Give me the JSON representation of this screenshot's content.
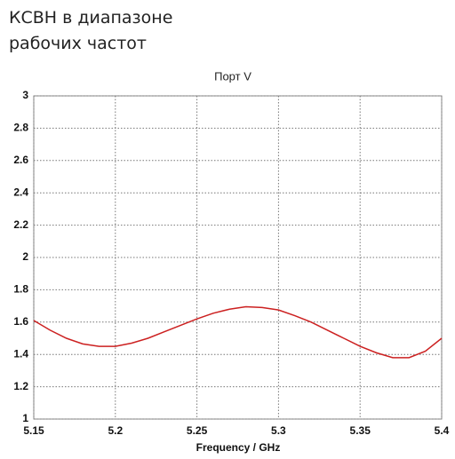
{
  "chart_data": {
    "type": "line",
    "title": "КСВН в диапазоне рабочих частот",
    "subtitle": "Порт V",
    "x_label": "Frequency / GHz",
    "x": [
      5.15,
      5.16,
      5.17,
      5.18,
      5.19,
      5.2,
      5.21,
      5.22,
      5.23,
      5.24,
      5.25,
      5.26,
      5.27,
      5.28,
      5.29,
      5.3,
      5.31,
      5.32,
      5.33,
      5.34,
      5.35,
      5.36,
      5.37,
      5.38,
      5.39,
      5.4
    ],
    "series": [
      {
        "color": "#cc2020",
        "values": [
          1.61,
          1.55,
          1.5,
          1.465,
          1.45,
          1.45,
          1.47,
          1.5,
          1.54,
          1.58,
          1.62,
          1.655,
          1.68,
          1.695,
          1.69,
          1.675,
          1.64,
          1.6,
          1.55,
          1.5,
          1.45,
          1.41,
          1.38,
          1.38,
          1.42,
          1.5
        ]
      }
    ],
    "xlim": [
      5.15,
      5.4
    ],
    "xticks": [
      5.15,
      5.2,
      5.25,
      5.3,
      5.35,
      5.4
    ],
    "ylim": [
      1,
      3
    ],
    "yticks": [
      1,
      1.2,
      1.4,
      1.6,
      1.8,
      2,
      2.2,
      2.4,
      2.6,
      2.8,
      3
    ],
    "grid": true
  }
}
